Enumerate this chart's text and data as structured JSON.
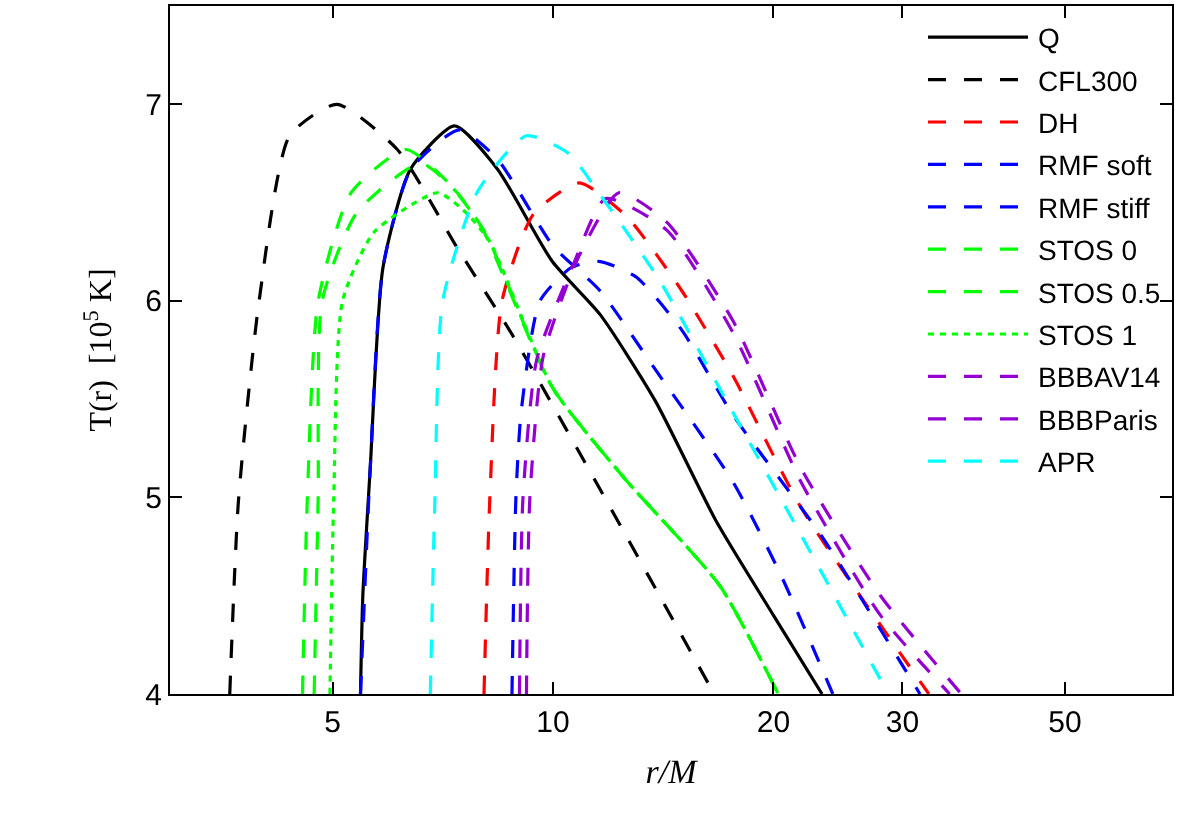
{
  "chart_data": {
    "type": "line",
    "xlabel": "r/M",
    "ylabel": "T(r)  [10$^{5}$ K]",
    "log": "x",
    "xlim": [
      3,
      70
    ],
    "ylim": [
      4,
      7.5
    ],
    "xticks": [
      5,
      10,
      20,
      30,
      50
    ],
    "yticks": [
      4,
      5,
      6,
      7
    ],
    "grid": false,
    "legend": "top right",
    "marker": "none",
    "series": [
      {
        "name": "Q",
        "color": "#000000",
        "line_style": "solid",
        "x": [
          5.46,
          5.5,
          5.63,
          5.86,
          6.39,
          7.34,
          8.4,
          9.98,
          11.6,
          13.8,
          16.7,
          20,
          23.3
        ],
        "values": [
          4,
          4.5,
          5.15,
          6.17,
          6.67,
          6.89,
          6.67,
          6.2,
          5.93,
          5.49,
          4.88,
          4.4,
          4
        ]
      },
      {
        "name": "CFL300",
        "color": "#000000",
        "line_style": "dashed",
        "x": [
          3.62,
          3.72,
          3.97,
          4.37,
          5.07,
          6.13,
          7.4,
          8.79,
          11.6,
          16.6
        ],
        "values": [
          4,
          4.98,
          6.0,
          6.84,
          7.0,
          6.77,
          6.27,
          5.83,
          5.04,
          4
        ]
      },
      {
        "name": "DH",
        "color": "#ff0000",
        "line_style": "dashed",
        "x": [
          8.05,
          8.2,
          8.52,
          9.4,
          10.86,
          12.6,
          15,
          17.6,
          21.8,
          32.6
        ],
        "values": [
          4,
          5.0,
          6.0,
          6.44,
          6.6,
          6.43,
          6.05,
          5.62,
          4.95,
          4
        ]
      },
      {
        "name": "RMF soft",
        "color": "#0000ff",
        "line_style": "dashed",
        "x": [
          8.79,
          8.9,
          9.05,
          9.6,
          10.6,
          11.6,
          13,
          15,
          17.6,
          23.3,
          31.7
        ],
        "values": [
          4,
          5.0,
          5.44,
          6.0,
          6.17,
          6.2,
          6.12,
          5.85,
          5.42,
          4.8,
          4
        ]
      },
      {
        "name": "RMF stiff",
        "color": "#0000ff",
        "line_style": "dashed",
        "x": [
          5.46,
          5.63,
          5.86,
          6.4,
          7.45,
          8.4,
          10,
          11.6,
          13.8,
          17.6,
          20.5,
          24.1
        ],
        "values": [
          4,
          5.15,
          6.17,
          6.67,
          6.87,
          6.72,
          6.28,
          6.05,
          5.65,
          5.08,
          4.6,
          4
        ]
      },
      {
        "name": "STOS 0",
        "color": "#00ff00",
        "line_style": "dashed",
        "x": [
          4.55,
          4.62,
          4.78,
          5.3,
          6.3,
          7.2,
          8.0,
          9.98,
          12.5,
          16.9,
          20.3
        ],
        "values": [
          4,
          5.0,
          6.0,
          6.55,
          6.77,
          6.6,
          6.37,
          5.56,
          5.1,
          4.55,
          4
        ]
      },
      {
        "name": "STOS 0.5",
        "color": "#00ff00",
        "line_style": "dashed",
        "x": [
          4.72,
          4.78,
          4.84,
          5.4,
          6.6,
          7.4,
          8.1,
          9.98,
          12.5,
          16.9,
          20.3
        ],
        "values": [
          4,
          5.0,
          6.0,
          6.45,
          6.7,
          6.55,
          6.34,
          5.56,
          5.1,
          4.55,
          4
        ]
      },
      {
        "name": "STOS 1",
        "color": "#00ff00",
        "line_style": "dotted",
        "x": [
          4.96,
          5.02,
          5.16,
          5.7,
          6.96,
          7.6,
          8.2,
          9.98,
          12.5,
          16.9,
          20.3
        ],
        "values": [
          4,
          5.0,
          6.0,
          6.35,
          6.55,
          6.45,
          6.3,
          5.56,
          5.1,
          4.55,
          4
        ]
      },
      {
        "name": "BBBAV14",
        "color": "#9400d3",
        "line_style": "dashed",
        "x": [
          9.2,
          9.3,
          9.7,
          10.86,
          12.3,
          14.3,
          17.6,
          21.8,
          28,
          36.1
        ],
        "values": [
          4,
          5.0,
          5.72,
          6.23,
          6.55,
          6.4,
          5.9,
          5.15,
          4.5,
          4
        ]
      },
      {
        "name": "BBBParis",
        "color": "#9400d3",
        "line_style": "dashed",
        "x": [
          9.0,
          9.1,
          9.5,
          10.7,
          11.8,
          14.3,
          17.6,
          21.8,
          28,
          34.8
        ],
        "values": [
          4,
          5.0,
          5.7,
          6.2,
          6.52,
          6.36,
          5.84,
          5.08,
          4.4,
          4
        ]
      },
      {
        "name": "APR",
        "color": "#00ffff",
        "line_style": "dashed",
        "x": [
          6.8,
          6.9,
          7.07,
          7.9,
          9.2,
          10.5,
          11.6,
          14,
          17.2,
          21.8,
          28.7
        ],
        "values": [
          4,
          5.0,
          6.0,
          6.56,
          6.84,
          6.75,
          6.54,
          6.1,
          5.5,
          4.81,
          4
        ]
      }
    ]
  }
}
